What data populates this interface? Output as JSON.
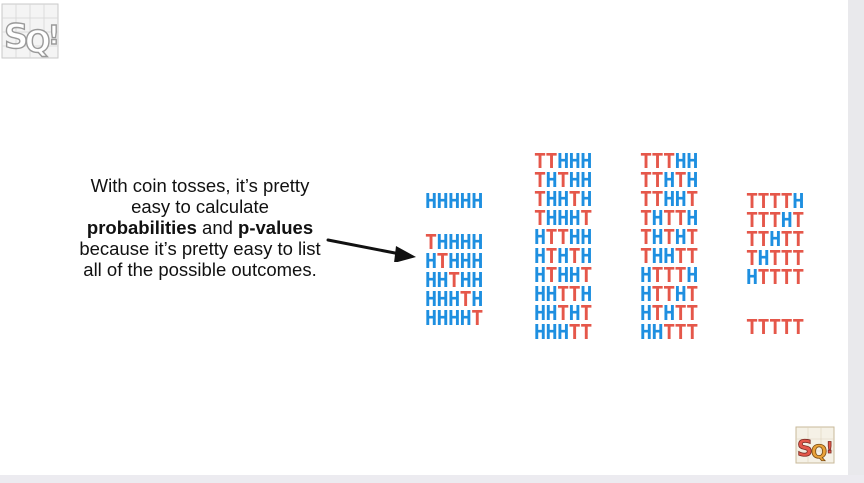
{
  "caption": {
    "line1": "With coin tosses, it’s pretty",
    "line2": "easy to calculate",
    "bold1": "probabilities",
    "and": " and ",
    "bold2": "p-values",
    "line4": "because it’s pretty easy to list",
    "line5": "all of the possible outcomes."
  },
  "logo": {
    "text": "SQ!",
    "name": "statquest-logo"
  },
  "colors": {
    "heads": "#1e8fe0",
    "tails": "#e5574a"
  },
  "outcome_groups": [
    [
      "HHHHH"
    ],
    [
      "THHHH",
      "HTHHH",
      "HHTHH",
      "HHHTH",
      "HHHHT"
    ],
    [
      "TTHHH",
      "THTHH",
      "THHTH",
      "THHHT",
      "HTTHH",
      "HTHTH",
      "HTHHT",
      "HHTTH",
      "HHTHT",
      "HHHTT"
    ],
    [
      "TTTHH",
      "TTHTH",
      "TTHHT",
      "THTTH",
      "THTHT",
      "THHTT",
      "HTTTH",
      "HTTHT",
      "HTHTT",
      "HHTTT"
    ],
    [
      "TTTTH",
      "TTTHT",
      "TTHTT",
      "THTTT",
      "HTTTT"
    ],
    [
      "TTTTT"
    ]
  ]
}
